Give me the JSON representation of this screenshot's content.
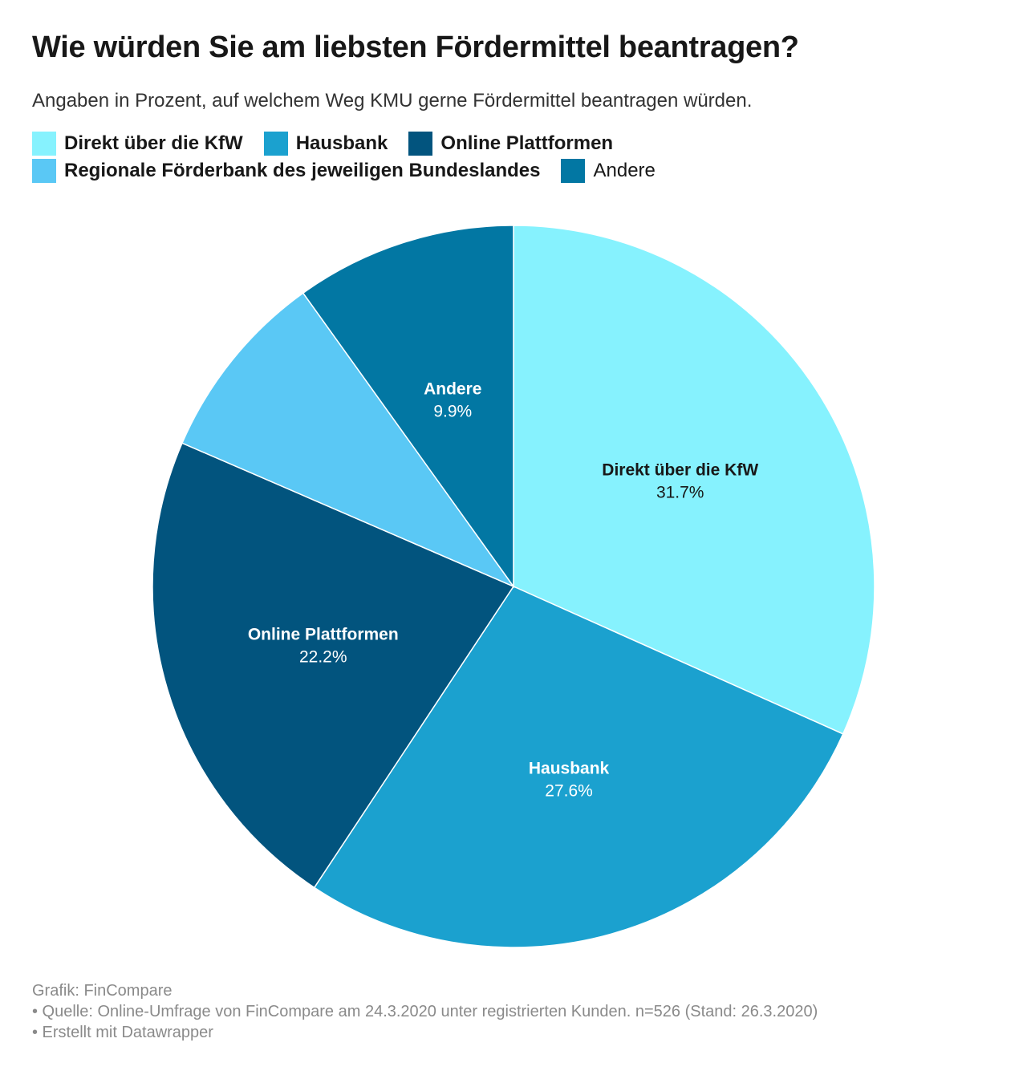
{
  "header": {
    "title": "Wie würden Sie am liebsten Fördermittel beantragen?",
    "subtitle": "Angaben in Prozent, auf welchem Weg KMU gerne Fördermittel beantragen würden."
  },
  "legend": {
    "items": [
      {
        "label": "Direkt über die KfW",
        "color": "#86f2fe",
        "bold": true
      },
      {
        "label": "Hausbank",
        "color": "#1ba1cf",
        "bold": true
      },
      {
        "label": "Online Plattformen",
        "color": "#02547e",
        "bold": true
      },
      {
        "label": "Regionale Förderbank des jeweiligen Bundeslandes",
        "color": "#5ac8f5",
        "bold": true
      },
      {
        "label": "Andere",
        "color": "#0277a3",
        "bold": false
      }
    ]
  },
  "chart_data": {
    "type": "pie",
    "title": "Wie würden Sie am liebsten Fördermittel beantragen?",
    "subtitle": "Angaben in Prozent, auf welchem Weg KMU gerne Fördermittel beantragen würden.",
    "unit": "%",
    "legend_position": "top",
    "slices": [
      {
        "label": "Direkt über die KfW",
        "value": 31.7,
        "value_label": "31.7%",
        "color": "#86f2fe",
        "label_color": "#181818",
        "show_label": true
      },
      {
        "label": "Hausbank",
        "value": 27.6,
        "value_label": "27.6%",
        "color": "#1ba1cf",
        "label_color": "#ffffff",
        "show_label": true
      },
      {
        "label": "Online Plattformen",
        "value": 22.2,
        "value_label": "22.2%",
        "color": "#02547e",
        "label_color": "#ffffff",
        "show_label": true
      },
      {
        "label": "Regionale Förderbank des jeweiligen Bundeslandes",
        "value": 8.6,
        "color": "#5ac8f5",
        "show_label": false
      },
      {
        "label": "Andere",
        "value": 9.9,
        "value_label": "9.9%",
        "color": "#0277a3",
        "label_color": "#ffffff",
        "show_label": true
      }
    ]
  },
  "footer": {
    "credit": "Grafik: FinCompare",
    "source": "• Quelle: Online-Umfrage von FinCompare am 24.3.2020 unter registrierten Kunden. n=526 (Stand: 26.3.2020)",
    "tool": "• Erstellt mit Datawrapper"
  }
}
